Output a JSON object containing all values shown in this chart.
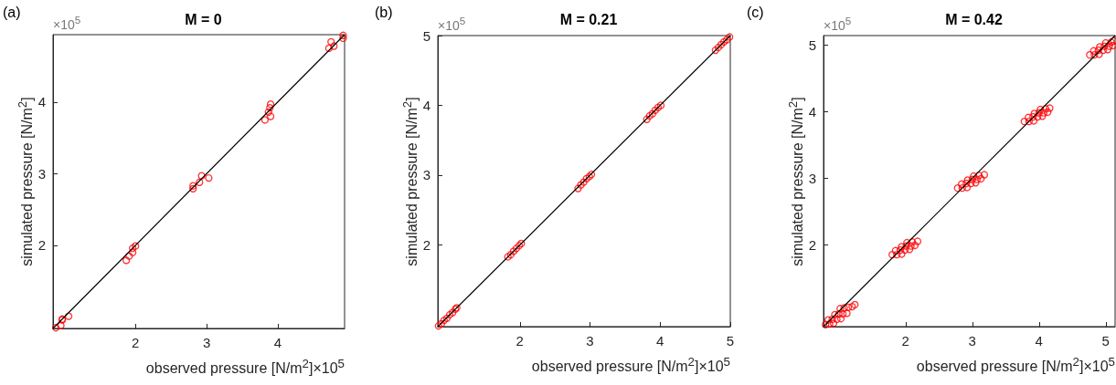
{
  "chart_data": [
    {
      "type": "scatter",
      "title": "M = 0",
      "xlabel": "observed pressure [N/m$^{2}$]×10$^{5}$",
      "ylabel": "simulated pressure [N/m$^{2}$]",
      "annotations": [
        "(a)",
        "×10$^{5}$"
      ],
      "xlim": [
        0.84,
        4.94
      ],
      "ylim": [
        0.84,
        4.94
      ],
      "xticks": [
        2,
        3,
        4
      ],
      "yticks": [
        2,
        3,
        4
      ],
      "grid": false,
      "marker": "circle",
      "series": [
        {
          "color": "#ff0000",
          "x": [
            0.88,
            0.95,
            0.97,
            0.97,
            1.06,
            1.87,
            1.91,
            1.96,
            1.96,
            2.0,
            2.81,
            2.81,
            2.9,
            2.93,
            3.03,
            3.82,
            3.87,
            3.89,
            3.9,
            3.9,
            4.72,
            4.75,
            4.79,
            4.92,
            4.92
          ],
          "values": [
            0.85,
            0.88,
            0.97,
            0.96,
            1.01,
            1.79,
            1.85,
            1.9,
            1.96,
            1.99,
            2.79,
            2.83,
            2.88,
            2.97,
            2.94,
            3.75,
            3.86,
            3.92,
            3.97,
            3.8,
            4.75,
            4.84,
            4.78,
            4.89,
            4.93
          ]
        },
        {
          "type": "line",
          "color": "#000000",
          "marker": "none",
          "x": [
            0.84,
            4.94
          ],
          "values": [
            0.84,
            4.94
          ]
        }
      ]
    },
    {
      "type": "scatter",
      "title": "M = 0.21",
      "xlabel": "observed pressure [N/m$^{2}$]×10$^{5}$",
      "ylabel": "simulated pressure [N/m$^{2}$]",
      "annotations": [
        "(b)",
        "×10$^{5}$"
      ],
      "xlim": [
        0.83,
        5
      ],
      "ylim": [
        0.83,
        5
      ],
      "xticks": [
        2,
        3,
        4,
        5
      ],
      "yticks": [
        2,
        3,
        4,
        5
      ],
      "grid": false,
      "marker": "circle",
      "series": [
        {
          "color": "#ff0000",
          "x": [
            0.84,
            0.88,
            0.92,
            0.96,
            1.0,
            1.04,
            1.08,
            1.1,
            1.83,
            1.87,
            1.91,
            1.95,
            1.99,
            2.02,
            2.83,
            2.87,
            2.91,
            2.95,
            2.99,
            3.02,
            3.81,
            3.85,
            3.89,
            3.93,
            3.97,
            4.01,
            4.79,
            4.83,
            4.87,
            4.91,
            4.95,
            4.99
          ],
          "values": [
            0.84,
            0.87,
            0.92,
            0.95,
            1.0,
            1.03,
            1.08,
            1.1,
            1.83,
            1.86,
            1.91,
            1.95,
            1.99,
            2.02,
            2.81,
            2.86,
            2.9,
            2.95,
            2.98,
            3.01,
            3.8,
            3.85,
            3.88,
            3.93,
            3.97,
            4.0,
            4.79,
            4.83,
            4.87,
            4.91,
            4.94,
            4.98
          ]
        },
        {
          "type": "line",
          "color": "#000000",
          "marker": "none",
          "x": [
            0.83,
            5
          ],
          "values": [
            0.83,
            5
          ]
        }
      ]
    },
    {
      "type": "scatter",
      "title": "M = 0.42",
      "xlabel": "observed pressure [N/m$^{2}$]×10$^{5}$",
      "ylabel": "simulated pressure [N/m$^{2}$]",
      "annotations": [
        "(c)",
        "×10$^{5}$"
      ],
      "xlim": [
        0.77,
        5.14
      ],
      "ylim": [
        0.77,
        5.14
      ],
      "xticks": [
        2,
        3,
        4,
        5
      ],
      "yticks": [
        2,
        3,
        4,
        5
      ],
      "grid": false,
      "marker": "circle",
      "series": [
        {
          "color": "#ff0000",
          "x": [
            0.8,
            0.86,
            0.92,
            0.84,
            0.9,
            0.97,
            1.03,
            0.94,
            1.0,
            1.06,
            1.12,
            1.02,
            1.08,
            1.14,
            1.2,
            1.24,
            1.8,
            1.87,
            1.94,
            1.85,
            1.92,
            1.99,
            2.06,
            1.94,
            2.01,
            2.08,
            2.14,
            2.02,
            2.1,
            2.18,
            2.78,
            2.85,
            2.92,
            2.84,
            2.91,
            2.98,
            3.05,
            2.93,
            3.0,
            3.07,
            3.13,
            3.02,
            3.1,
            3.18,
            3.78,
            3.85,
            3.92,
            3.84,
            3.91,
            3.98,
            4.05,
            3.93,
            4.0,
            4.07,
            4.13,
            4.02,
            4.1,
            4.16,
            4.76,
            4.83,
            4.9,
            4.82,
            4.89,
            4.96,
            5.03,
            4.91,
            4.98,
            5.05,
            5.11,
            5.0,
            5.08,
            5.12
          ],
          "values": [
            0.8,
            0.81,
            0.82,
            0.87,
            0.88,
            0.88,
            0.89,
            0.95,
            0.96,
            0.96,
            0.97,
            1.04,
            1.05,
            1.06,
            1.07,
            1.1,
            1.85,
            1.85,
            1.86,
            1.91,
            1.92,
            1.92,
            1.93,
            1.97,
            1.98,
            1.98,
            1.99,
            2.03,
            2.04,
            2.05,
            2.85,
            2.85,
            2.86,
            2.91,
            2.92,
            2.92,
            2.93,
            2.97,
            2.98,
            2.98,
            2.99,
            3.03,
            3.04,
            3.05,
            3.85,
            3.85,
            3.86,
            3.91,
            3.92,
            3.92,
            3.93,
            3.97,
            3.98,
            3.98,
            3.99,
            4.03,
            4.04,
            4.05,
            4.85,
            4.85,
            4.86,
            4.91,
            4.92,
            4.92,
            4.93,
            4.97,
            4.98,
            4.98,
            4.99,
            5.03,
            5.04,
            5.06
          ]
        },
        {
          "type": "line",
          "color": "#000000",
          "marker": "none",
          "x": [
            0.77,
            5.14
          ],
          "values": [
            0.77,
            5.14
          ]
        }
      ]
    }
  ]
}
